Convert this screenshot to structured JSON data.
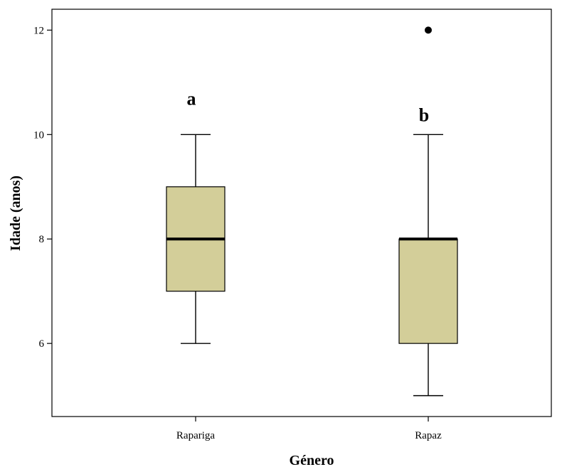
{
  "chart_data": {
    "type": "boxplot",
    "xlabel": "Género",
    "ylabel": "Idade (anos)",
    "categories": [
      "Rapariga",
      "Rapaz"
    ],
    "ylim": [
      4.6,
      12.4
    ],
    "yticks": [
      6,
      8,
      10,
      12
    ],
    "grid": false,
    "box_color": "#d3ce99",
    "boxes": [
      {
        "category": "Rapariga",
        "whisker_low": 6,
        "q1": 7,
        "median": 8,
        "q3": 9,
        "whisker_high": 10,
        "outliers": [],
        "annotation": "a"
      },
      {
        "category": "Rapaz",
        "whisker_low": 5,
        "q1": 6,
        "median": 8,
        "q3": 8,
        "whisker_high": 10,
        "outliers": [
          12
        ],
        "annotation": "b"
      }
    ]
  }
}
